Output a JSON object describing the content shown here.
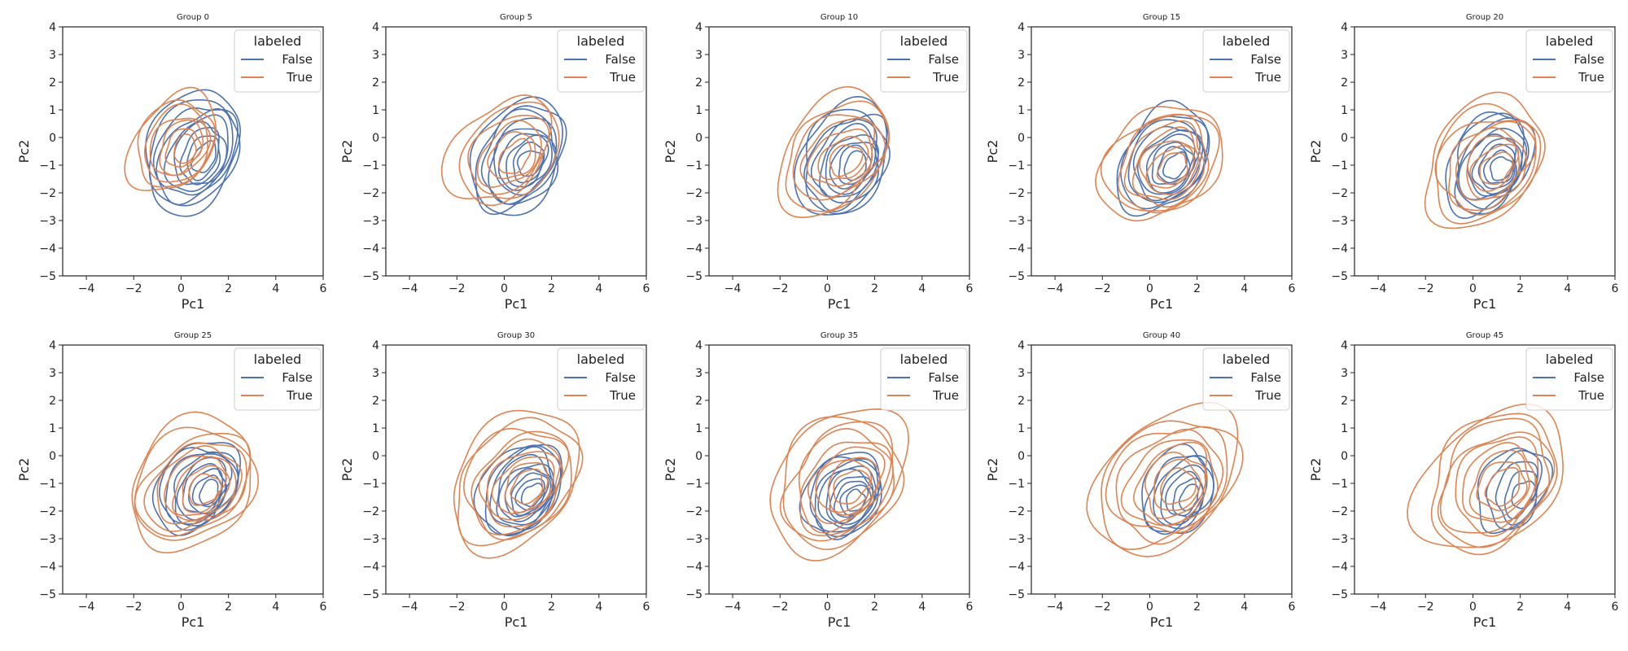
{
  "chart_data": {
    "type": "kde-contour",
    "layout": {
      "rows": 2,
      "cols": 5
    },
    "xlabel": "Pc1",
    "ylabel": "Pc2",
    "xlim": [
      -5,
      6
    ],
    "ylim": [
      -5,
      4
    ],
    "xticks": [
      -4,
      -2,
      0,
      2,
      4,
      6
    ],
    "yticks": [
      -5,
      -4,
      -3,
      -2,
      -1,
      0,
      1,
      2,
      3,
      4
    ],
    "legend": {
      "title": "labeled",
      "position": "upper-right",
      "entries": [
        {
          "label": "False",
          "color": "#4c72b0"
        },
        {
          "label": "True",
          "color": "#dd8452"
        }
      ]
    },
    "panels": [
      {
        "title": "Group 0",
        "false_density": {
          "center": [
            0.8,
            -0.6
          ],
          "spread": [
            2.0,
            2.2
          ],
          "levels": 9
        },
        "true_density": {
          "center": [
            0.0,
            -0.3
          ],
          "spread": [
            1.8,
            1.8
          ],
          "levels": 7
        }
      },
      {
        "title": "Group 5",
        "false_density": {
          "center": [
            0.9,
            -0.8
          ],
          "spread": [
            2.0,
            2.0
          ],
          "levels": 9
        },
        "true_density": {
          "center": [
            0.3,
            -0.6
          ],
          "spread": [
            2.2,
            2.0
          ],
          "levels": 6
        }
      },
      {
        "title": "Group 10",
        "false_density": {
          "center": [
            1.0,
            -0.9
          ],
          "spread": [
            2.0,
            2.0
          ],
          "levels": 9
        },
        "true_density": {
          "center": [
            0.6,
            -0.7
          ],
          "spread": [
            2.4,
            2.1
          ],
          "levels": 7
        }
      },
      {
        "title": "Group 15",
        "false_density": {
          "center": [
            0.9,
            -0.9
          ],
          "spread": [
            1.9,
            1.9
          ],
          "levels": 9
        },
        "true_density": {
          "center": [
            0.8,
            -1.0
          ],
          "spread": [
            2.5,
            2.1
          ],
          "levels": 8
        }
      },
      {
        "title": "Group 20",
        "false_density": {
          "center": [
            1.0,
            -1.0
          ],
          "spread": [
            1.8,
            1.8
          ],
          "levels": 9
        },
        "true_density": {
          "center": [
            0.8,
            -1.0
          ],
          "spread": [
            2.6,
            2.2
          ],
          "levels": 8
        }
      },
      {
        "title": "Group 25",
        "false_density": {
          "center": [
            1.0,
            -1.2
          ],
          "spread": [
            1.7,
            1.7
          ],
          "levels": 9
        },
        "true_density": {
          "center": [
            0.8,
            -1.1
          ],
          "spread": [
            2.7,
            2.3
          ],
          "levels": 9
        }
      },
      {
        "title": "Group 30",
        "false_density": {
          "center": [
            1.0,
            -1.3
          ],
          "spread": [
            1.7,
            1.7
          ],
          "levels": 9
        },
        "true_density": {
          "center": [
            0.8,
            -1.0
          ],
          "spread": [
            2.8,
            2.4
          ],
          "levels": 9
        }
      },
      {
        "title": "Group 35",
        "false_density": {
          "center": [
            1.0,
            -1.5
          ],
          "spread": [
            1.6,
            1.6
          ],
          "levels": 9
        },
        "true_density": {
          "center": [
            0.8,
            -1.0
          ],
          "spread": [
            2.9,
            2.5
          ],
          "levels": 9
        }
      },
      {
        "title": "Group 40",
        "false_density": {
          "center": [
            1.5,
            -1.4
          ],
          "spread": [
            1.5,
            1.6
          ],
          "levels": 7
        },
        "true_density": {
          "center": [
            1.0,
            -1.0
          ],
          "spread": [
            3.0,
            2.6
          ],
          "levels": 9
        }
      },
      {
        "title": "Group 45",
        "false_density": {
          "center": [
            2.0,
            -1.3
          ],
          "spread": [
            1.4,
            1.6
          ],
          "levels": 5
        },
        "true_density": {
          "center": [
            1.1,
            -1.0
          ],
          "spread": [
            3.0,
            2.6
          ],
          "levels": 9
        }
      }
    ]
  }
}
